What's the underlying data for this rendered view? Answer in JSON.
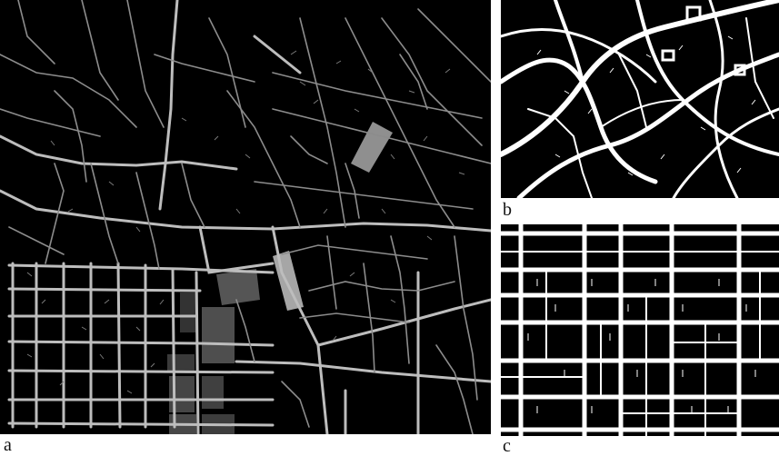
{
  "figure": {
    "panels": [
      {
        "id": "a",
        "label": "a",
        "description_color": "#000000"
      },
      {
        "id": "b",
        "label": "b"
      },
      {
        "id": "c",
        "label": "c"
      }
    ]
  },
  "colors": {
    "background": "#000000",
    "road_major": "#bdbdbd",
    "road_minor": "#8c8c8c",
    "blocks_light": "#a9a9a9",
    "blocks_dark": "#5a5a5a",
    "network_white": "#ffffff"
  }
}
